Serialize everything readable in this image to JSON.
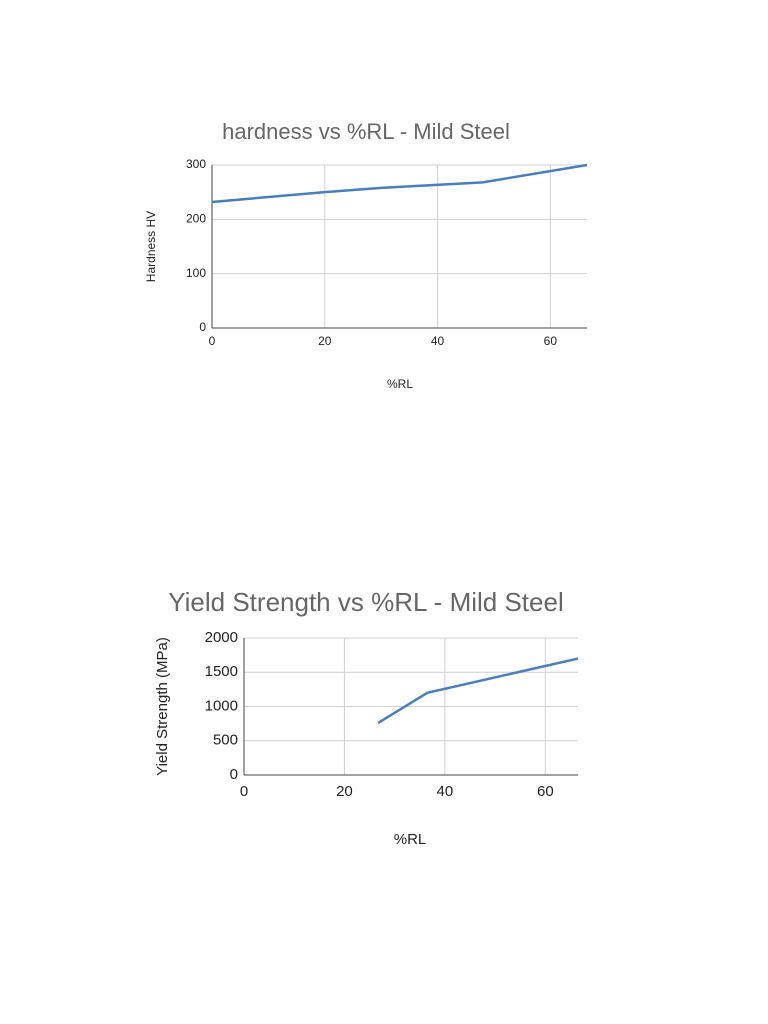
{
  "chart_data": [
    {
      "type": "line",
      "title": "hardness vs %RL - Mild Steel",
      "x_label": "%RL",
      "y_label": "Hardness HV",
      "x": [
        0,
        20,
        30,
        48,
        66.5
      ],
      "values": [
        232,
        250,
        258,
        268,
        300
      ],
      "color": "#4a7ebb",
      "xlim": [
        0,
        66.5
      ],
      "ylim": [
        0,
        300
      ],
      "xticks": [
        0,
        20,
        40,
        60
      ],
      "yticks": [
        0,
        100,
        200,
        300
      ],
      "grid": true
    },
    {
      "type": "line",
      "title": "Yield Strength vs %RL - Mild Steel",
      "x_label": "%RL",
      "y_label": "Yield Strength (MPa)",
      "x": [
        26.7,
        36.5,
        66.5
      ],
      "values": [
        760,
        1200,
        1700
      ],
      "color": "#4a7ebb",
      "xlim": [
        0,
        66.5
      ],
      "ylim": [
        0,
        2000
      ],
      "xticks": [
        0,
        20,
        40,
        60
      ],
      "yticks": [
        0,
        500,
        1000,
        1500,
        2000
      ],
      "grid": true
    }
  ]
}
